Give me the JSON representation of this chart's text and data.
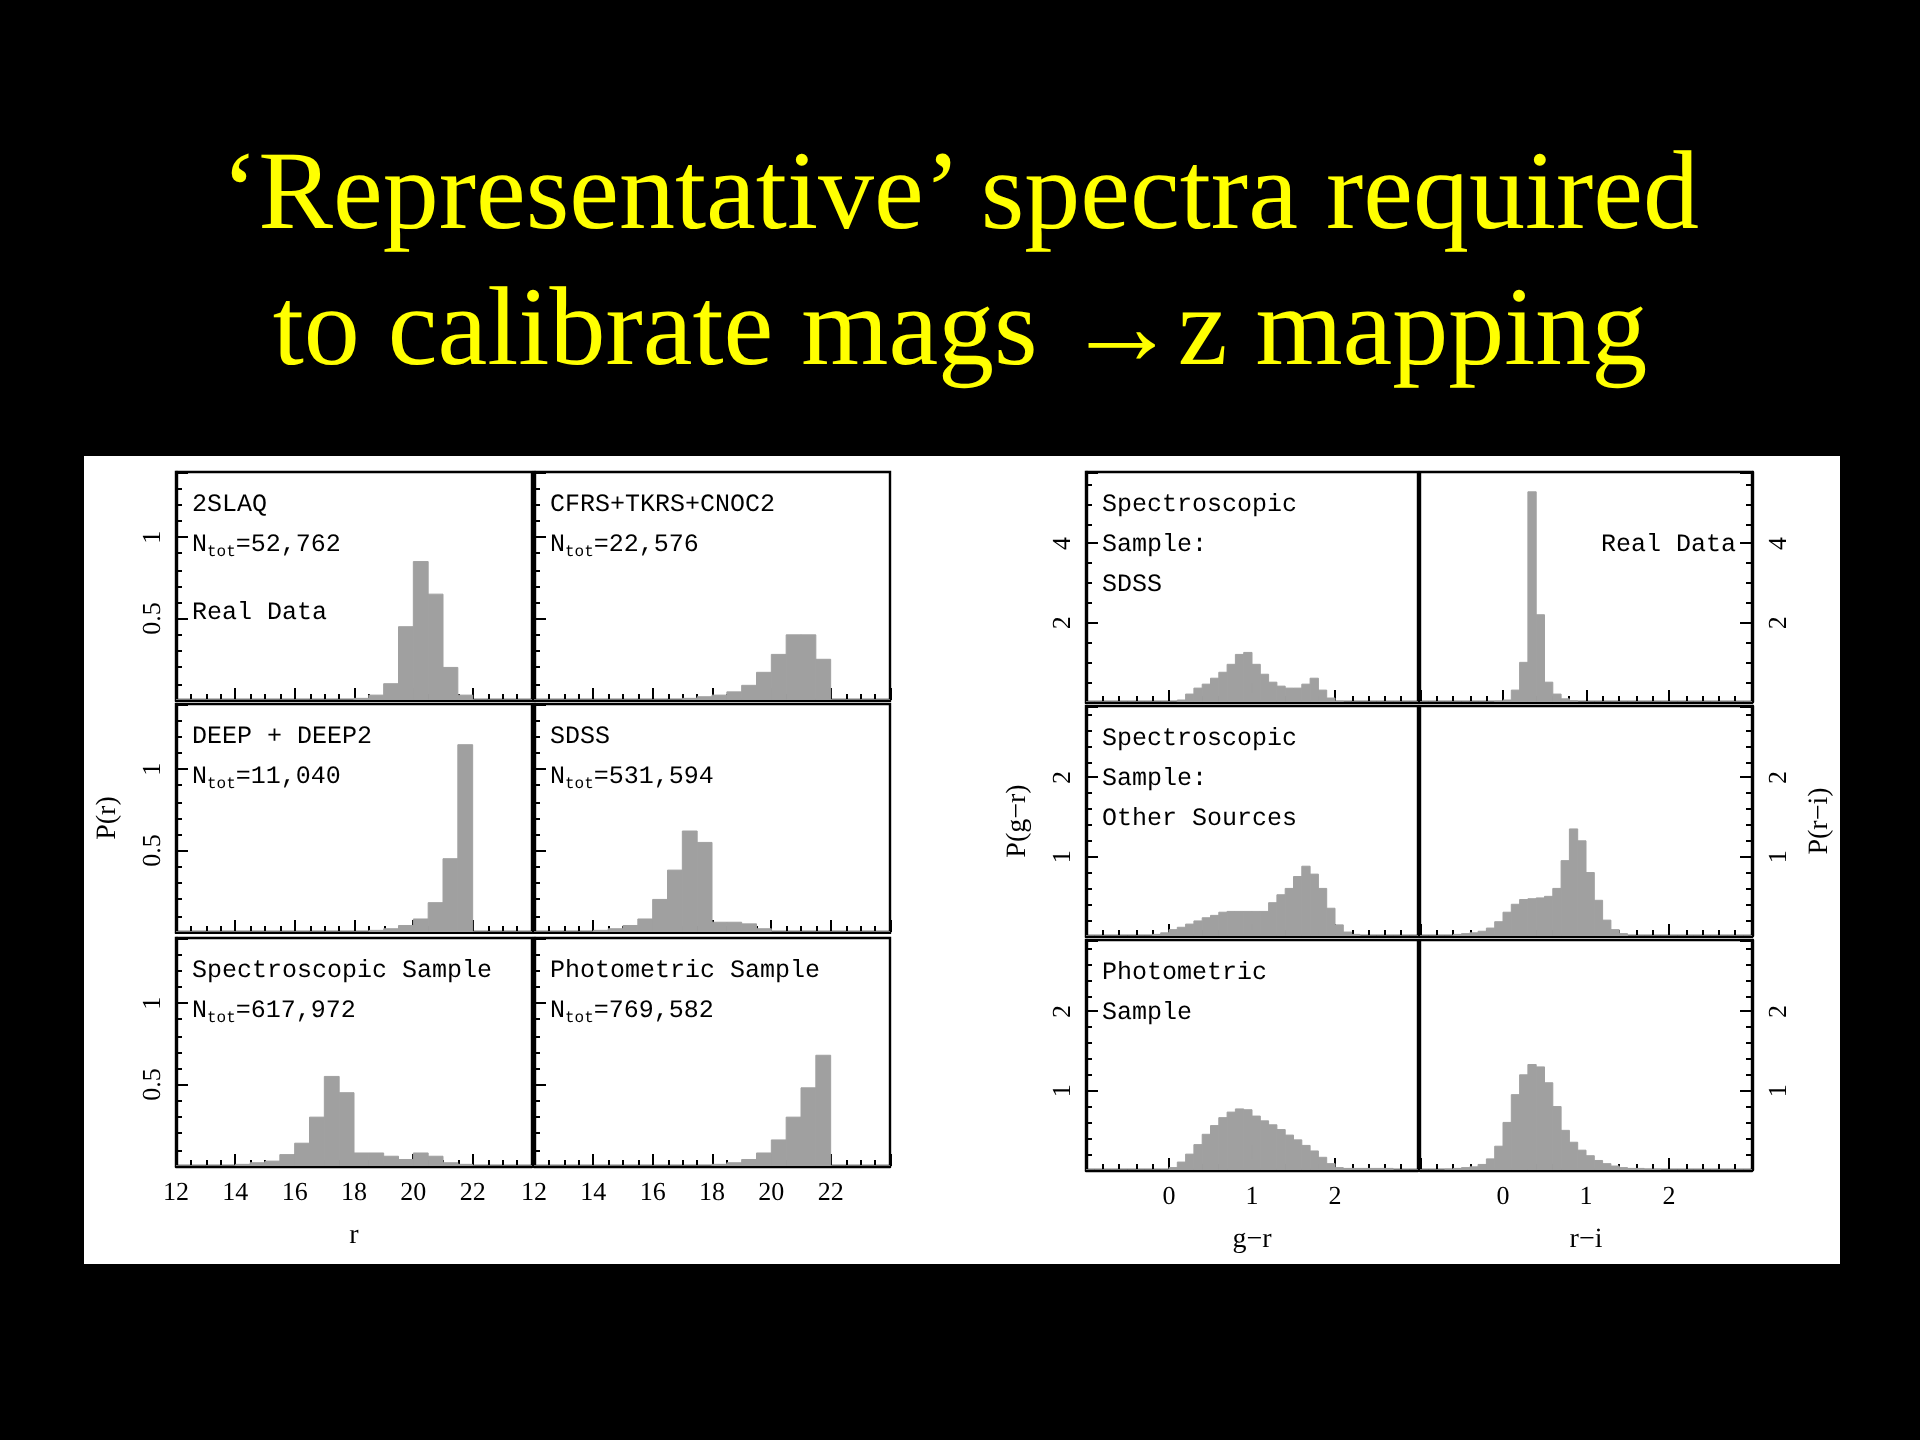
{
  "chart_data": [
    {
      "type": "histogram",
      "title": "‘Representative’ spectra required to calibrate mags →z mapping",
      "bins": [
        12,
        12.5,
        13,
        13.5,
        14,
        14.5,
        15,
        15.5,
        16,
        16.5,
        17,
        17.5,
        18,
        18.5,
        19,
        19.5,
        20,
        20.5,
        21,
        21.5,
        22,
        22.5,
        23,
        23.5,
        24
      ],
      "values": [
        0,
        0,
        0,
        0,
        0,
        0,
        0,
        0,
        0,
        0,
        0,
        0,
        0.01,
        0.03,
        0.1,
        0.45,
        0.85,
        0.65,
        0.2,
        0.03,
        0,
        0,
        0,
        0
      ],
      "color": "#a0a0a0",
      "xlim": [
        12,
        24
      ],
      "xticks": [
        12,
        14,
        16,
        18,
        20,
        22
      ],
      "ylim": [
        0,
        1.4
      ],
      "yticks": [
        0.5,
        1
      ],
      "tick_labels": "y",
      "annotations": [
        "2SLAQ",
        "N$_{tot}$=52,762",
        "Real Data"
      ]
    },
    {
      "type": "histogram",
      "bins": [
        12,
        12.5,
        13,
        13.5,
        14,
        14.5,
        15,
        15.5,
        16,
        16.5,
        17,
        17.5,
        18,
        18.5,
        19,
        19.5,
        20,
        20.5,
        21,
        21.5,
        22,
        22.5,
        23,
        23.5,
        24
      ],
      "values": [
        0,
        0,
        0,
        0,
        0,
        0,
        0,
        0,
        0,
        0,
        0.01,
        0.02,
        0.03,
        0.05,
        0.09,
        0.17,
        0.28,
        0.4,
        0.4,
        0.25,
        0,
        0,
        0,
        0
      ],
      "color": "#a0a0a0",
      "xlim": [
        12,
        24
      ],
      "xticks": [
        12,
        14,
        16,
        18,
        20,
        22
      ],
      "ylim": [
        0,
        1.4
      ],
      "yticks": [
        0.5,
        1
      ],
      "tick_labels": false,
      "annotations": [
        "CFRS+TKRS+CNOC2",
        "N$_{tot}$=22,576"
      ]
    },
    {
      "type": "histogram",
      "bins": [
        12,
        12.5,
        13,
        13.5,
        14,
        14.5,
        15,
        15.5,
        16,
        16.5,
        17,
        17.5,
        18,
        18.5,
        19,
        19.5,
        20,
        20.5,
        21,
        21.5,
        22,
        22.5,
        23,
        23.5,
        24
      ],
      "values": [
        0,
        0,
        0,
        0,
        0,
        0,
        0,
        0,
        0,
        0,
        0,
        0,
        0,
        0.01,
        0.02,
        0.04,
        0.08,
        0.18,
        0.45,
        1.15,
        0,
        0,
        0,
        0
      ],
      "color": "#a0a0a0",
      "xlim": [
        12,
        24
      ],
      "xticks": [
        12,
        14,
        16,
        18,
        20,
        22
      ],
      "ylim": [
        0,
        1.4
      ],
      "yticks": [
        0.5,
        1
      ],
      "tick_labels": "y",
      "ylabel": "P(r)",
      "annotations": [
        "DEEP + DEEP2",
        "N$_{tot}$=11,040"
      ]
    },
    {
      "type": "histogram",
      "bins": [
        12,
        12.5,
        13,
        13.5,
        14,
        14.5,
        15,
        15.5,
        16,
        16.5,
        17,
        17.5,
        18,
        18.5,
        19,
        19.5,
        20,
        20.5,
        21,
        21.5,
        22,
        22.5,
        23,
        23.5,
        24
      ],
      "values": [
        0,
        0,
        0,
        0,
        0.01,
        0.02,
        0.04,
        0.08,
        0.2,
        0.38,
        0.62,
        0.55,
        0.06,
        0.06,
        0.05,
        0.02,
        0,
        0,
        0,
        0,
        0,
        0,
        0,
        0
      ],
      "color": "#a0a0a0",
      "xlim": [
        12,
        24
      ],
      "xticks": [
        12,
        14,
        16,
        18,
        20,
        22
      ],
      "ylim": [
        0,
        1.4
      ],
      "yticks": [
        0.5,
        1
      ],
      "tick_labels": false,
      "annotations": [
        "SDSS",
        "N$_{tot}$=531,594"
      ]
    },
    {
      "type": "histogram",
      "bins": [
        12,
        12.5,
        13,
        13.5,
        14,
        14.5,
        15,
        15.5,
        16,
        16.5,
        17,
        17.5,
        18,
        18.5,
        19,
        19.5,
        20,
        20.5,
        21,
        21.5,
        22,
        22.5,
        23,
        23.5,
        24
      ],
      "values": [
        0,
        0,
        0,
        0,
        0.01,
        0.02,
        0.03,
        0.07,
        0.14,
        0.3,
        0.55,
        0.45,
        0.08,
        0.08,
        0.06,
        0.04,
        0.08,
        0.06,
        0.02,
        0.01,
        0,
        0,
        0,
        0
      ],
      "color": "#a0a0a0",
      "xlim": [
        12,
        24
      ],
      "xticks": [
        12,
        14,
        16,
        18,
        20,
        22
      ],
      "ylim": [
        0,
        1.4
      ],
      "yticks": [
        0.5,
        1
      ],
      "xlabel": "r",
      "annotations": [
        "Spectroscopic Sample",
        "N$_{tot}$=617,972"
      ]
    },
    {
      "type": "histogram",
      "bins": [
        12,
        12.5,
        13,
        13.5,
        14,
        14.5,
        15,
        15.5,
        16,
        16.5,
        17,
        17.5,
        18,
        18.5,
        19,
        19.5,
        20,
        20.5,
        21,
        21.5,
        22,
        22.5,
        23,
        23.5,
        24
      ],
      "values": [
        0,
        0,
        0,
        0,
        0,
        0,
        0,
        0,
        0,
        0,
        0,
        0,
        0.01,
        0.02,
        0.04,
        0.08,
        0.16,
        0.3,
        0.48,
        0.68,
        0,
        0,
        0,
        0
      ],
      "color": "#a0a0a0",
      "xlim": [
        12,
        24
      ],
      "xticks": [
        12,
        14,
        16,
        18,
        20,
        22
      ],
      "ylim": [
        0,
        1.4
      ],
      "yticks": [
        0.5,
        1
      ],
      "tick_labels": "x",
      "annotations": [
        "Photometric Sample",
        "N$_{tot}$=769,582"
      ]
    },
    {
      "type": "histogram",
      "bins": [
        -1,
        -0.9,
        -0.8,
        -0.7,
        -0.6,
        -0.5,
        -0.4,
        -0.3,
        -0.2,
        -0.1,
        0,
        0.1,
        0.2,
        0.3,
        0.4,
        0.5,
        0.6,
        0.7,
        0.8,
        0.9,
        1,
        1.1,
        1.2,
        1.3,
        1.4,
        1.5,
        1.6,
        1.7,
        1.8,
        1.9,
        2,
        2.1,
        2.2,
        2.3,
        2.4,
        2.5,
        2.6,
        2.7,
        2.8,
        2.9,
        3
      ],
      "values": [
        0,
        0,
        0,
        0,
        0,
        0,
        0,
        0,
        0,
        0,
        0,
        0.05,
        0.2,
        0.35,
        0.45,
        0.6,
        0.75,
        0.95,
        1.2,
        1.25,
        0.95,
        0.7,
        0.5,
        0.4,
        0.35,
        0.35,
        0.45,
        0.6,
        0.3,
        0.1,
        0.02,
        0,
        0,
        0,
        0,
        0,
        0,
        0,
        0,
        0
      ],
      "color": "#a0a0a0",
      "xlim": [
        -1,
        3
      ],
      "xticks": [
        0,
        1,
        2
      ],
      "ylim": [
        0,
        5.8
      ],
      "yticks": [
        2,
        4
      ],
      "tick_labels": "y",
      "annotations": [
        "Spectroscopic",
        "Sample:",
        "SDSS"
      ]
    },
    {
      "type": "histogram",
      "bins": [
        -1,
        -0.9,
        -0.8,
        -0.7,
        -0.6,
        -0.5,
        -0.4,
        -0.3,
        -0.2,
        -0.1,
        0,
        0.1,
        0.2,
        0.3,
        0.4,
        0.5,
        0.6,
        0.7,
        0.8,
        0.9,
        1,
        1.1,
        1.2,
        1.3,
        1.4,
        1.5,
        1.6,
        1.7,
        1.8,
        1.9,
        2,
        2.1,
        2.2,
        2.3,
        2.4,
        2.5,
        2.6,
        2.7,
        2.8,
        2.9,
        3
      ],
      "series": [
        {
          "color": "#a0a0a0",
          "axis": "y2",
          "values": [
            0,
            0,
            0,
            0,
            0,
            0,
            0,
            0,
            0,
            0.02,
            0.05,
            0.3,
            1.0,
            5.3,
            2.2,
            0.5,
            0.2,
            0.08,
            0.03,
            0,
            0,
            0,
            0,
            0,
            0,
            0,
            0,
            0,
            0,
            0,
            0,
            0,
            0,
            0,
            0,
            0,
            0,
            0,
            0,
            0
          ]
        }
      ],
      "xlim": [
        -1,
        3
      ],
      "xticks": [
        0,
        1,
        2
      ],
      "y2lim": [
        0,
        5.8
      ],
      "y2ticks": [
        2,
        4
      ],
      "tick_labels": "y",
      "annotations": [
        "Real Data"
      ]
    },
    {
      "type": "histogram",
      "bins": [
        -1,
        -0.9,
        -0.8,
        -0.7,
        -0.6,
        -0.5,
        -0.4,
        -0.3,
        -0.2,
        -0.1,
        0,
        0.1,
        0.2,
        0.3,
        0.4,
        0.5,
        0.6,
        0.7,
        0.8,
        0.9,
        1,
        1.1,
        1.2,
        1.3,
        1.4,
        1.5,
        1.6,
        1.7,
        1.8,
        1.9,
        2,
        2.1,
        2.2,
        2.3,
        2.4,
        2.5,
        2.6,
        2.7,
        2.8,
        2.9,
        3
      ],
      "values": [
        0,
        0,
        0,
        0,
        0,
        0,
        0,
        0,
        0.02,
        0.04,
        0.08,
        0.11,
        0.15,
        0.19,
        0.23,
        0.26,
        0.3,
        0.31,
        0.31,
        0.31,
        0.31,
        0.31,
        0.42,
        0.52,
        0.6,
        0.75,
        0.88,
        0.78,
        0.6,
        0.35,
        0.14,
        0.05,
        0.02,
        0,
        0,
        0,
        0,
        0,
        0,
        0
      ],
      "color": "#a0a0a0",
      "xlim": [
        -1,
        3
      ],
      "xticks": [
        0,
        1,
        2
      ],
      "ylim": [
        0,
        2.9
      ],
      "yticks": [
        1,
        2
      ],
      "tick_labels": "y",
      "ylabel": "P(g−r)",
      "annotations": [
        "Spectroscopic",
        "Sample:",
        "Other Sources"
      ]
    },
    {
      "type": "histogram",
      "bins": [
        -1,
        -0.9,
        -0.8,
        -0.7,
        -0.6,
        -0.5,
        -0.4,
        -0.3,
        -0.2,
        -0.1,
        0,
        0.1,
        0.2,
        0.3,
        0.4,
        0.5,
        0.6,
        0.7,
        0.8,
        0.9,
        1,
        1.1,
        1.2,
        1.3,
        1.4,
        1.5,
        1.6,
        1.7,
        1.8,
        1.9,
        2,
        2.1,
        2.2,
        2.3,
        2.4,
        2.5,
        2.6,
        2.7,
        2.8,
        2.9,
        3
      ],
      "series": [
        {
          "color": "#a0a0a0",
          "axis": "y2",
          "values": [
            0,
            0,
            0,
            0,
            0.02,
            0.03,
            0.04,
            0.06,
            0.1,
            0.18,
            0.3,
            0.4,
            0.46,
            0.47,
            0.48,
            0.5,
            0.6,
            0.95,
            1.35,
            1.2,
            0.8,
            0.45,
            0.2,
            0.08,
            0.03,
            0,
            0,
            0,
            0,
            0,
            0,
            0,
            0,
            0,
            0,
            0,
            0,
            0,
            0,
            0
          ]
        }
      ],
      "xlim": [
        -1,
        3
      ],
      "xticks": [
        0,
        1,
        2
      ],
      "y2lim": [
        0,
        2.9
      ],
      "y2ticks": [
        1,
        2
      ],
      "tick_labels": "y",
      "y2label": "P(r−i)"
    },
    {
      "type": "histogram",
      "bins": [
        -1,
        -0.9,
        -0.8,
        -0.7,
        -0.6,
        -0.5,
        -0.4,
        -0.3,
        -0.2,
        -0.1,
        0,
        0.1,
        0.2,
        0.3,
        0.4,
        0.5,
        0.6,
        0.7,
        0.8,
        0.9,
        1,
        1.1,
        1.2,
        1.3,
        1.4,
        1.5,
        1.6,
        1.7,
        1.8,
        1.9,
        2,
        2.1,
        2.2,
        2.3,
        2.4,
        2.5,
        2.6,
        2.7,
        2.8,
        2.9,
        3
      ],
      "values": [
        0,
        0,
        0,
        0,
        0,
        0,
        0,
        0,
        0,
        0,
        0.03,
        0.1,
        0.2,
        0.32,
        0.45,
        0.56,
        0.66,
        0.73,
        0.77,
        0.76,
        0.68,
        0.62,
        0.57,
        0.51,
        0.44,
        0.38,
        0.31,
        0.24,
        0.16,
        0.08,
        0.03,
        0.02,
        0.02,
        0.02,
        0.02,
        0.02,
        0.02,
        0,
        0,
        0
      ],
      "color": "#a0a0a0",
      "xlim": [
        -1,
        3
      ],
      "xticks": [
        0,
        1,
        2
      ],
      "ylim": [
        0,
        2.9
      ],
      "yticks": [
        1,
        2
      ],
      "xlabel": "g−r",
      "annotations": [
        "Photometric",
        "Sample"
      ]
    },
    {
      "type": "histogram",
      "bins": [
        -1,
        -0.9,
        -0.8,
        -0.7,
        -0.6,
        -0.5,
        -0.4,
        -0.3,
        -0.2,
        -0.1,
        0,
        0.1,
        0.2,
        0.3,
        0.4,
        0.5,
        0.6,
        0.7,
        0.8,
        0.9,
        1,
        1.1,
        1.2,
        1.3,
        1.4,
        1.5,
        1.6,
        1.7,
        1.8,
        1.9,
        2,
        2.1,
        2.2,
        2.3,
        2.4,
        2.5,
        2.6,
        2.7,
        2.8,
        2.9,
        3
      ],
      "series": [
        {
          "color": "#a0a0a0",
          "axis": "y2",
          "values": [
            0,
            0,
            0,
            0.01,
            0.02,
            0.03,
            0.04,
            0.07,
            0.14,
            0.3,
            0.6,
            0.95,
            1.2,
            1.33,
            1.3,
            1.1,
            0.8,
            0.5,
            0.35,
            0.25,
            0.18,
            0.12,
            0.08,
            0.05,
            0.03,
            0.02,
            0.02,
            0.01,
            0.01,
            0,
            0,
            0,
            0,
            0,
            0,
            0,
            0,
            0,
            0,
            0
          ]
        }
      ],
      "xlim": [
        -1,
        3
      ],
      "xticks": [
        0,
        1,
        2
      ],
      "y2lim": [
        0,
        2.9
      ],
      "y2ticks": [
        1,
        2
      ],
      "xlabel": "r−i"
    }
  ]
}
